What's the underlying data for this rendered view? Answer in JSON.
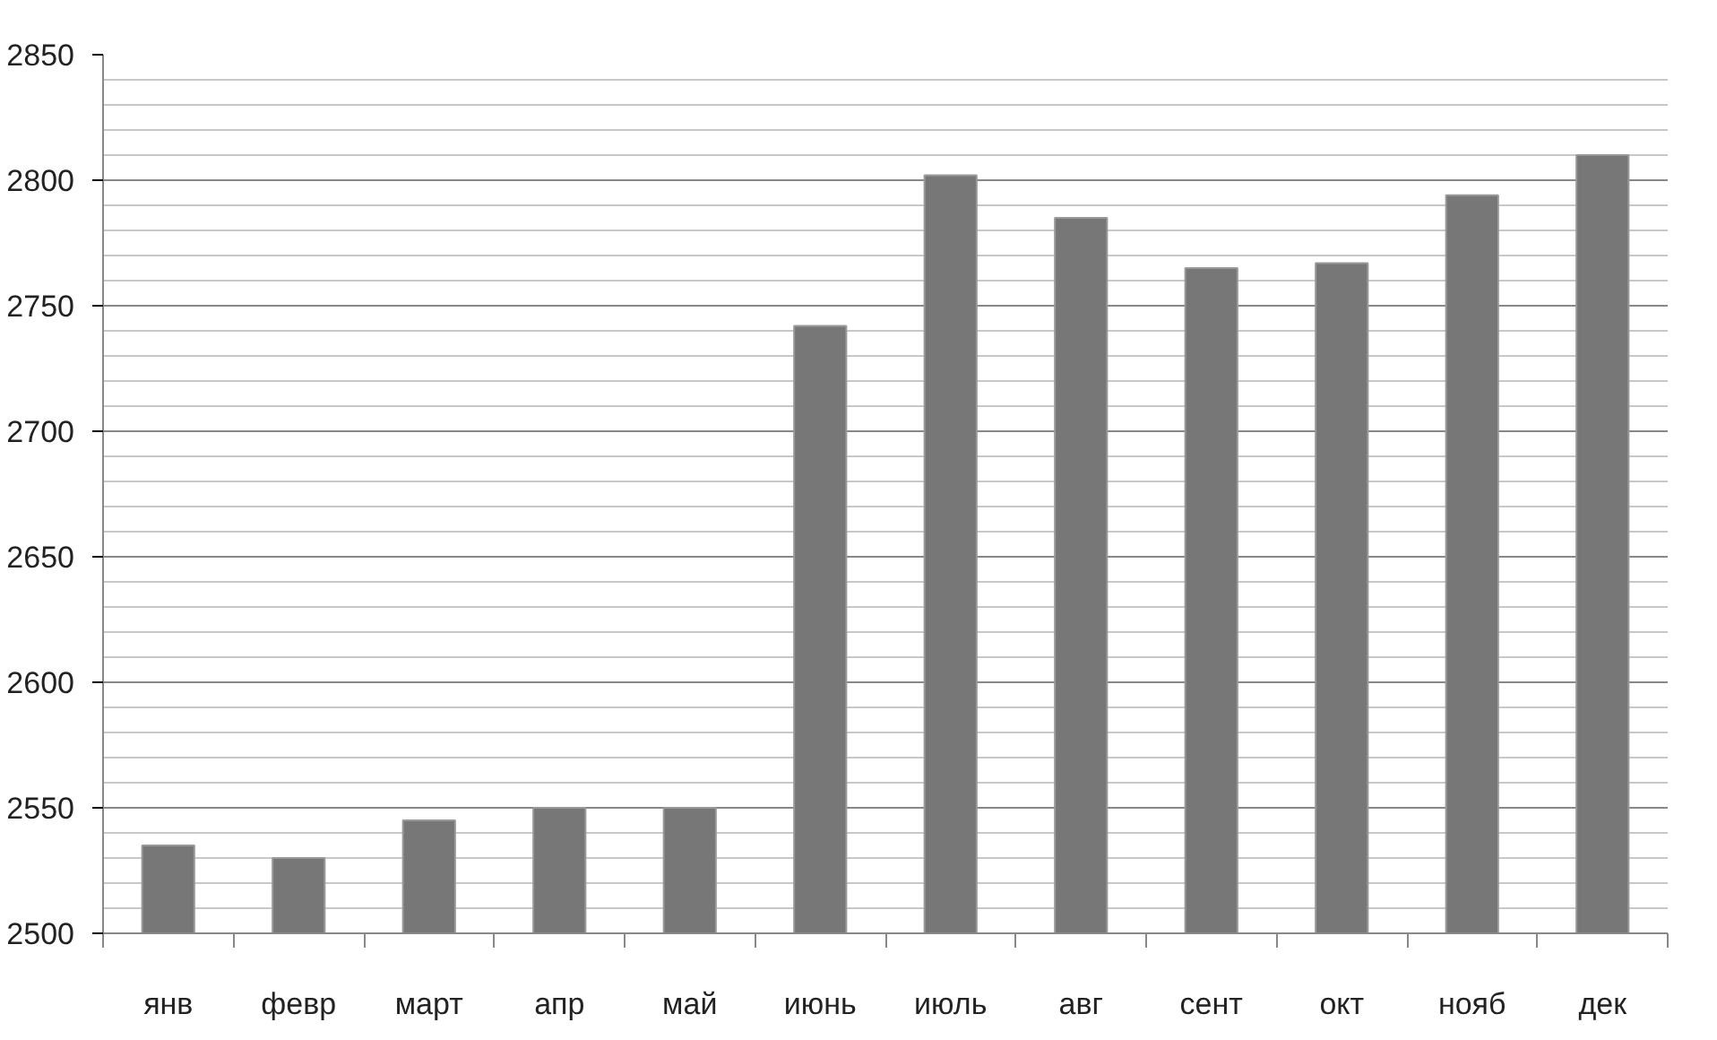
{
  "chart_data": {
    "type": "bar",
    "categories": [
      "янв",
      "февр",
      "март",
      "апр",
      "май",
      "июнь",
      "июль",
      "авг",
      "сент",
      "окт",
      "нояб",
      "дек"
    ],
    "values": [
      2535,
      2530,
      2545,
      2550,
      2550,
      2742,
      2802,
      2785,
      2765,
      2767,
      2794,
      2810
    ],
    "color": "#777777",
    "ylim": [
      2500,
      2850
    ],
    "yticks": [
      2500,
      2550,
      2600,
      2650,
      2700,
      2750,
      2800,
      2850
    ],
    "grid": "y"
  }
}
